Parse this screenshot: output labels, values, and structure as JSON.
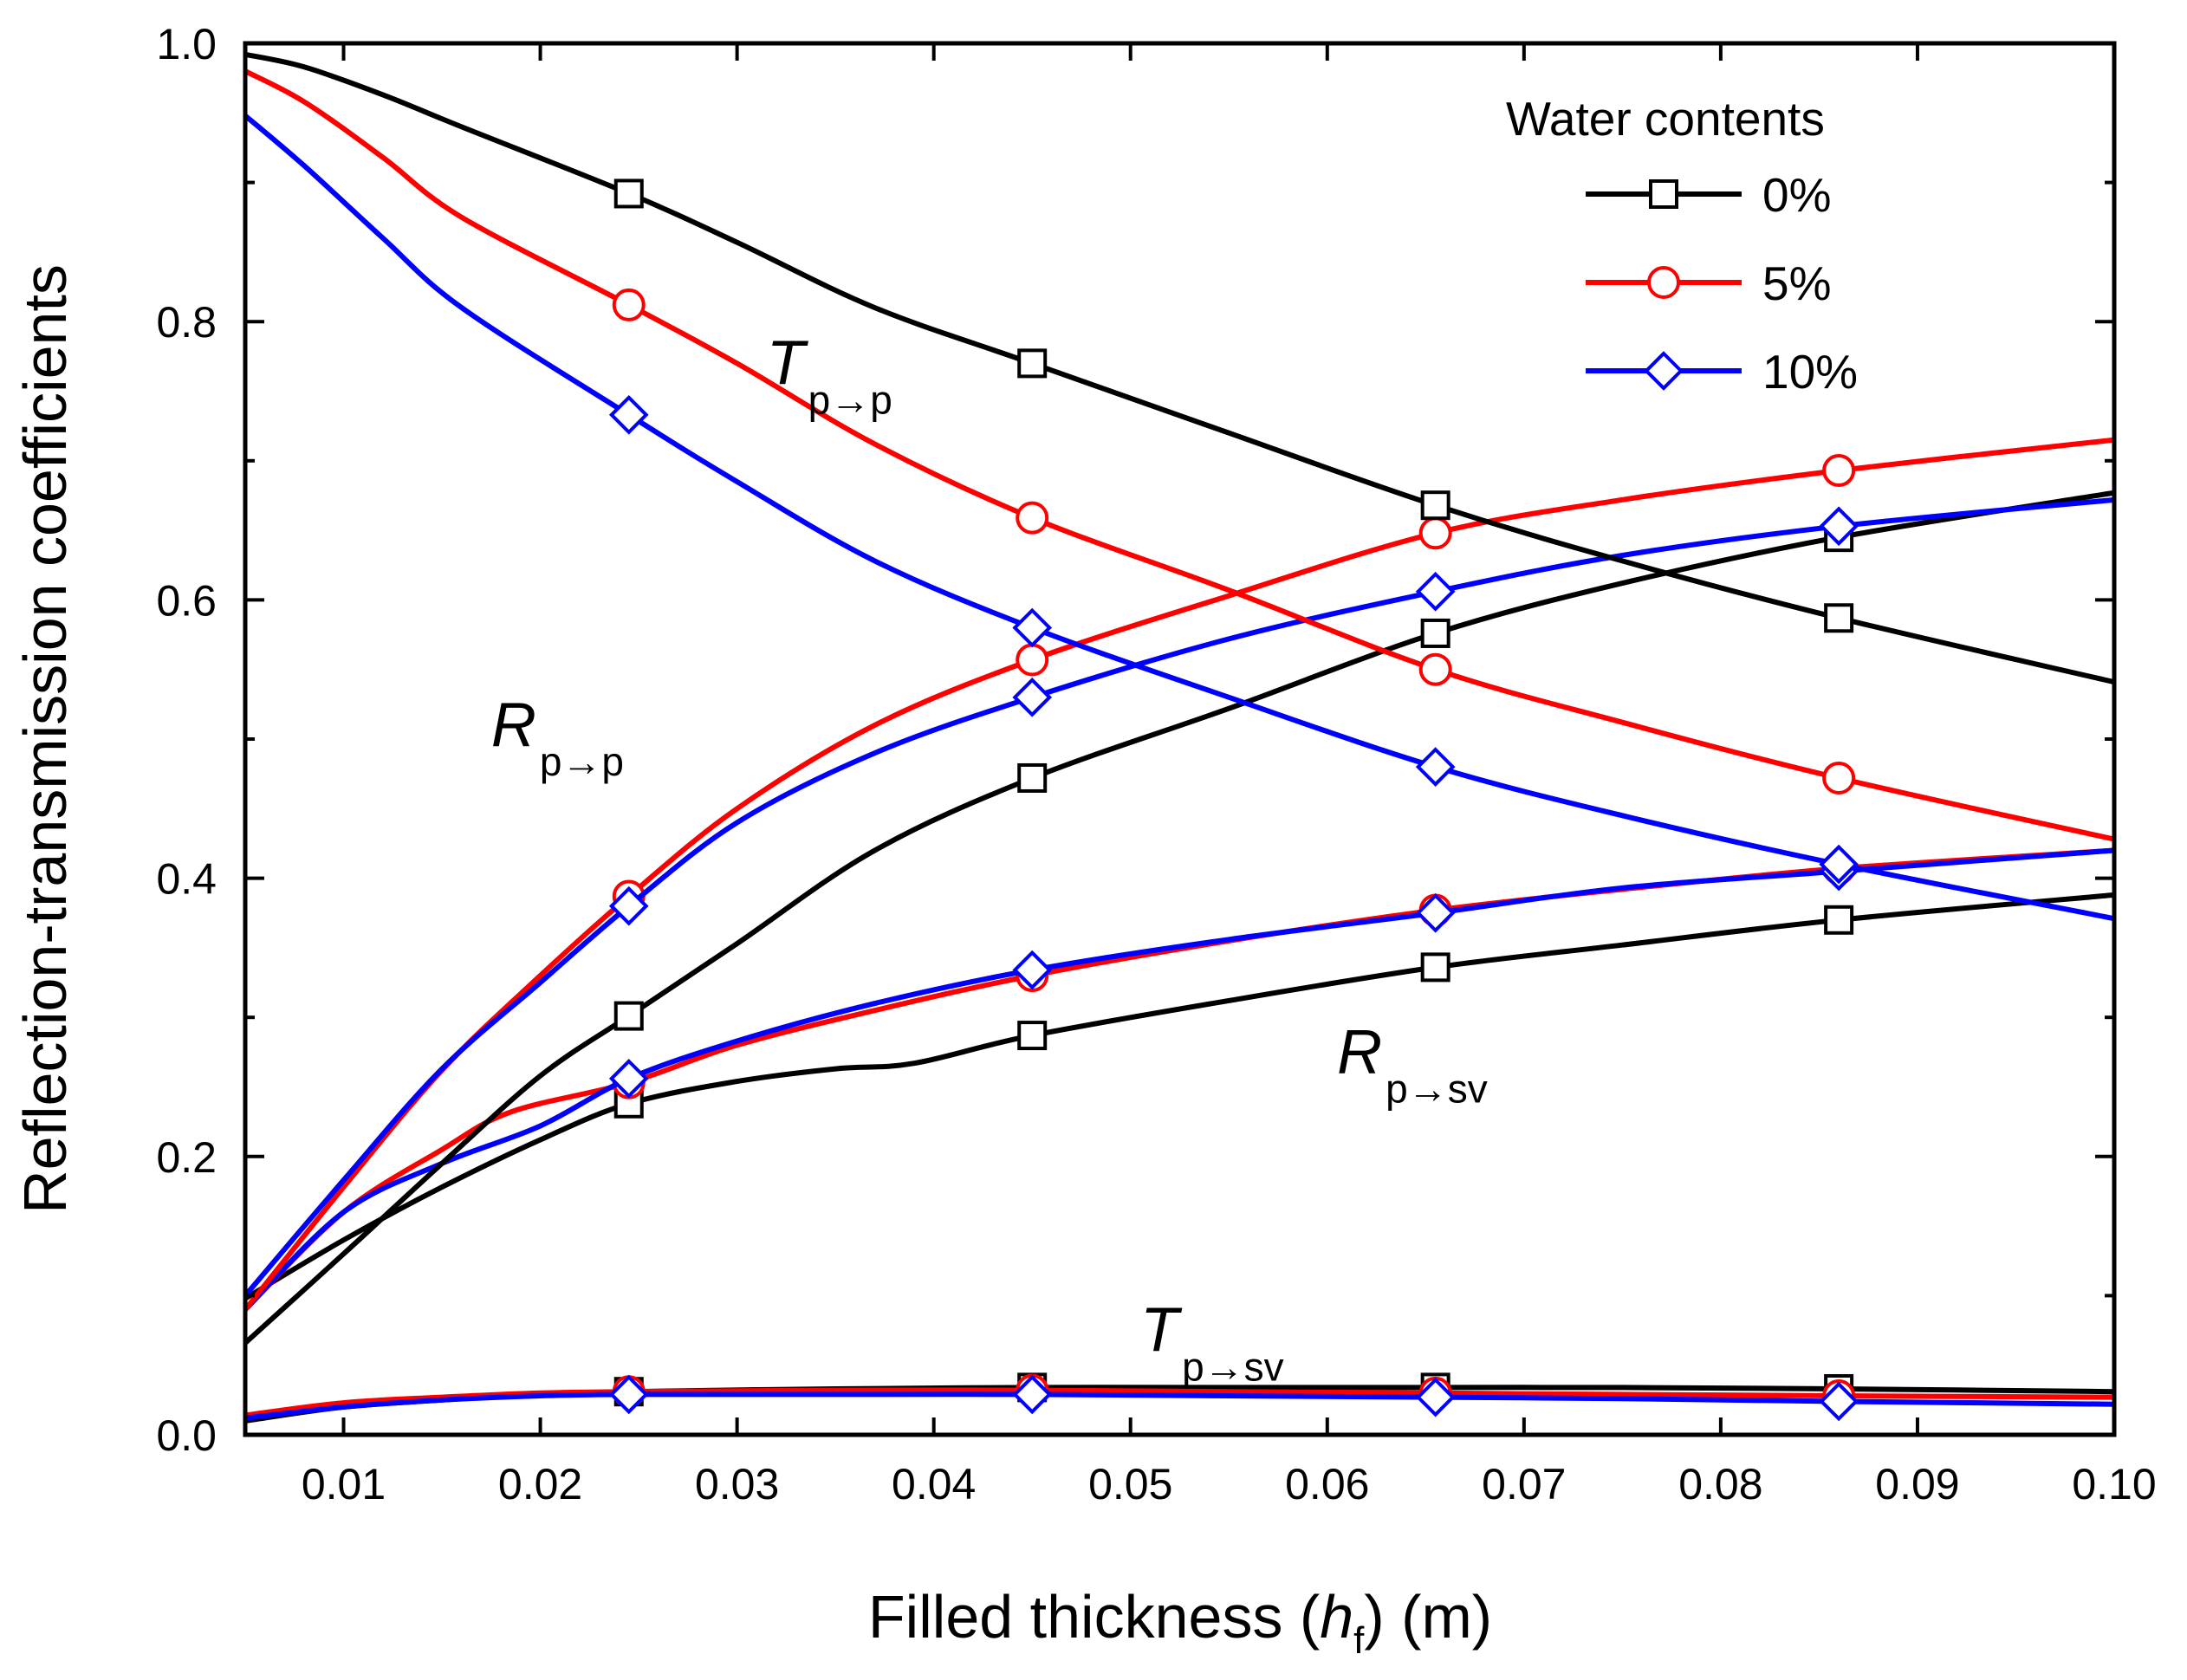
{
  "chart_data": {
    "type": "line",
    "xlabel_parts": [
      "Filled thickness (",
      "h",
      "f",
      ") (m)"
    ],
    "ylabel": "Reflection-transmission coefficients",
    "xlim": [
      0.005,
      0.1
    ],
    "ylim": [
      0.0,
      1.0
    ],
    "xticks": [
      0.01,
      0.02,
      0.03,
      0.04,
      0.05,
      0.06,
      0.07,
      0.08,
      0.09,
      0.1
    ],
    "xtick_labels": [
      "0.01",
      "0.02",
      "0.03",
      "0.04",
      "0.05",
      "0.06",
      "0.07",
      "0.08",
      "0.09",
      "0.10"
    ],
    "yticks": [
      0.0,
      0.2,
      0.4,
      0.6,
      0.8,
      1.0
    ],
    "ytick_labels": [
      "0.0",
      "0.2",
      "0.4",
      "0.6",
      "0.8",
      "1.0"
    ],
    "grid": false,
    "legend": {
      "title": "Water contents",
      "position": "top-right",
      "entries": [
        {
          "label": "0%",
          "color": "#000000",
          "marker": "square"
        },
        {
          "label": "5%",
          "color": "#ff0000",
          "marker": "circle"
        },
        {
          "label": "10%",
          "color": "#0000ff",
          "marker": "diamond"
        }
      ]
    },
    "annotations": [
      {
        "main": "T",
        "sub": "p→p",
        "x": 0.0315,
        "y": 0.755
      },
      {
        "main": "R",
        "sub": "p→p",
        "x": 0.0175,
        "y": 0.495
      },
      {
        "main": "R",
        "sub": "p→sv",
        "x": 0.0605,
        "y": 0.26
      },
      {
        "main": "T",
        "sub": "p→sv",
        "x": 0.0505,
        "y": 0.06
      }
    ],
    "marker_x": [
      0.0245,
      0.045,
      0.0655,
      0.086
    ],
    "series": [
      {
        "name": "0%",
        "group": "T p→p",
        "color": "#000000",
        "marker": "square",
        "x": [
          0.005,
          0.008,
          0.012,
          0.016,
          0.0245,
          0.03,
          0.037,
          0.045,
          0.055,
          0.0655,
          0.075,
          0.086,
          0.1
        ],
        "y": [
          0.992,
          0.983,
          0.963,
          0.94,
          0.892,
          0.857,
          0.81,
          0.77,
          0.72,
          0.668,
          0.628,
          0.587,
          0.541
        ]
      },
      {
        "name": "5%",
        "group": "T p→p",
        "color": "#ff0000",
        "marker": "circle",
        "x": [
          0.005,
          0.008,
          0.012,
          0.016,
          0.0245,
          0.03,
          0.037,
          0.045,
          0.055,
          0.0655,
          0.075,
          0.086,
          0.1
        ],
        "y": [
          0.98,
          0.958,
          0.918,
          0.875,
          0.812,
          0.77,
          0.712,
          0.659,
          0.607,
          0.55,
          0.512,
          0.472,
          0.428
        ]
      },
      {
        "name": "10%",
        "group": "T p→p",
        "color": "#0000ff",
        "marker": "diamond",
        "x": [
          0.005,
          0.008,
          0.012,
          0.016,
          0.0245,
          0.03,
          0.037,
          0.045,
          0.055,
          0.0655,
          0.075,
          0.086,
          0.1
        ],
        "y": [
          0.948,
          0.912,
          0.86,
          0.81,
          0.733,
          0.685,
          0.628,
          0.58,
          0.53,
          0.48,
          0.445,
          0.41,
          0.371
        ]
      },
      {
        "name": "0%",
        "group": "R p→p",
        "color": "#000000",
        "marker": "square",
        "x": [
          0.005,
          0.01,
          0.015,
          0.02,
          0.0245,
          0.03,
          0.037,
          0.045,
          0.055,
          0.0655,
          0.075,
          0.086,
          0.1
        ],
        "y": [
          0.066,
          0.13,
          0.195,
          0.258,
          0.301,
          0.353,
          0.42,
          0.472,
          0.522,
          0.576,
          0.612,
          0.645,
          0.677
        ]
      },
      {
        "name": "5%",
        "group": "R p→p",
        "color": "#ff0000",
        "marker": "circle",
        "x": [
          0.005,
          0.01,
          0.015,
          0.02,
          0.0245,
          0.03,
          0.037,
          0.045,
          0.055,
          0.0655,
          0.075,
          0.086,
          0.1
        ],
        "y": [
          0.09,
          0.178,
          0.262,
          0.33,
          0.387,
          0.45,
          0.51,
          0.557,
          0.603,
          0.648,
          0.672,
          0.693,
          0.715
        ]
      },
      {
        "name": "10%",
        "group": "R p→p",
        "color": "#0000ff",
        "marker": "diamond",
        "x": [
          0.005,
          0.01,
          0.015,
          0.02,
          0.0245,
          0.03,
          0.037,
          0.045,
          0.055,
          0.0655,
          0.075,
          0.086,
          0.1
        ],
        "y": [
          0.1,
          0.183,
          0.263,
          0.325,
          0.38,
          0.44,
          0.49,
          0.53,
          0.572,
          0.606,
          0.632,
          0.653,
          0.672
        ]
      },
      {
        "name": "0%",
        "group": "R p→sv",
        "color": "#000000",
        "marker": "square",
        "x": [
          0.005,
          0.01,
          0.015,
          0.02,
          0.0245,
          0.03,
          0.035,
          0.039,
          0.045,
          0.055,
          0.0655,
          0.075,
          0.086,
          0.1
        ],
        "y": [
          0.098,
          0.14,
          0.178,
          0.212,
          0.238,
          0.254,
          0.263,
          0.267,
          0.287,
          0.312,
          0.336,
          0.352,
          0.37,
          0.388
        ]
      },
      {
        "name": "5%",
        "group": "R p→sv",
        "color": "#ff0000",
        "marker": "circle",
        "x": [
          0.005,
          0.01,
          0.015,
          0.0185,
          0.0245,
          0.03,
          0.037,
          0.045,
          0.055,
          0.0655,
          0.075,
          0.086,
          0.1
        ],
        "y": [
          0.09,
          0.16,
          0.205,
          0.232,
          0.253,
          0.28,
          0.305,
          0.33,
          0.355,
          0.377,
          0.392,
          0.407,
          0.42
        ]
      },
      {
        "name": "10%",
        "group": "R p→sv",
        "color": "#0000ff",
        "marker": "diamond",
        "x": [
          0.005,
          0.01,
          0.015,
          0.02,
          0.0245,
          0.03,
          0.037,
          0.045,
          0.055,
          0.0655,
          0.075,
          0.086,
          0.1
        ],
        "y": [
          0.09,
          0.16,
          0.195,
          0.222,
          0.256,
          0.283,
          0.31,
          0.334,
          0.356,
          0.375,
          0.393,
          0.405,
          0.42
        ]
      },
      {
        "name": "0%",
        "group": "T p→sv",
        "color": "#000000",
        "marker": "square",
        "x": [
          0.005,
          0.01,
          0.015,
          0.02,
          0.0245,
          0.035,
          0.045,
          0.055,
          0.0655,
          0.075,
          0.086,
          0.1
        ],
        "y": [
          0.01,
          0.02,
          0.025,
          0.029,
          0.031,
          0.033,
          0.034,
          0.034,
          0.034,
          0.034,
          0.033,
          0.031
        ]
      },
      {
        "name": "5%",
        "group": "T p→sv",
        "color": "#ff0000",
        "marker": "circle",
        "x": [
          0.005,
          0.01,
          0.015,
          0.02,
          0.0245,
          0.035,
          0.045,
          0.055,
          0.0655,
          0.075,
          0.086,
          0.1
        ],
        "y": [
          0.014,
          0.023,
          0.027,
          0.03,
          0.031,
          0.032,
          0.032,
          0.031,
          0.03,
          0.029,
          0.028,
          0.027
        ]
      },
      {
        "name": "10%",
        "group": "T p→sv",
        "color": "#0000ff",
        "marker": "diamond",
        "x": [
          0.005,
          0.01,
          0.015,
          0.02,
          0.0245,
          0.035,
          0.045,
          0.055,
          0.0655,
          0.075,
          0.086,
          0.1
        ],
        "y": [
          0.012,
          0.02,
          0.025,
          0.028,
          0.029,
          0.029,
          0.029,
          0.028,
          0.027,
          0.026,
          0.024,
          0.022
        ]
      }
    ]
  }
}
